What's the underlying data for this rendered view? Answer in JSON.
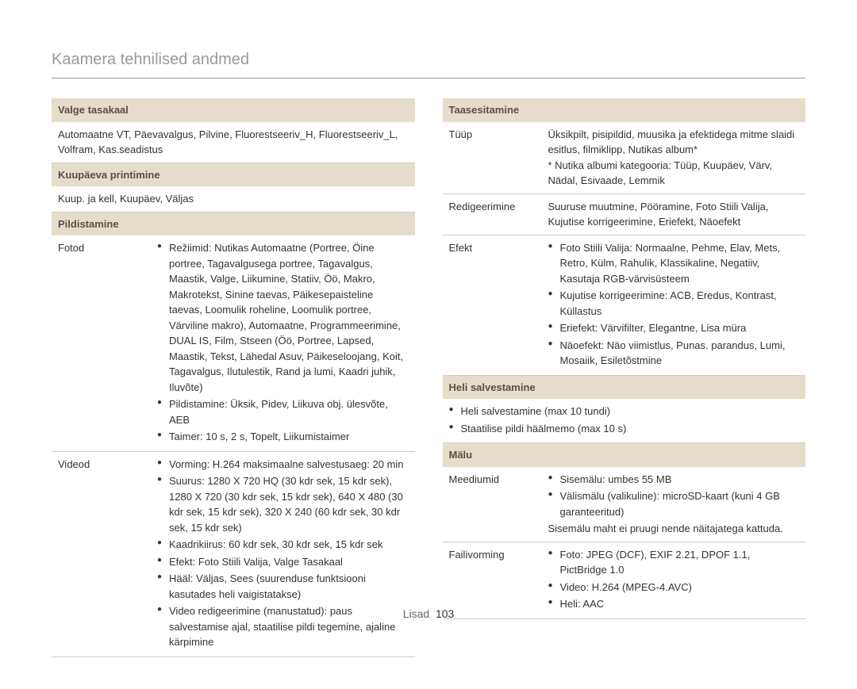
{
  "page": {
    "title": "Kaamera tehnilised andmed",
    "footer_label": "Lisad",
    "footer_page": "103"
  },
  "colors": {
    "header_bg": "#e6dccb",
    "header_text": "#5a5040",
    "border": "#cccccc",
    "title": "#999999",
    "body": "#333333"
  },
  "left": {
    "sec1": {
      "header": "Valge tasakaal",
      "body": "Automaatne VT, Päevavalgus, Pilvine, Fluorestseeriv_H, Fluorestseeriv_L, Volfram, Kas.seadistus"
    },
    "sec2": {
      "header": "Kuupäeva printimine",
      "body": "Kuup. ja kell, Kuupäev, Väljas"
    },
    "sec3": {
      "header": "Pildistamine",
      "row1_label": "Fotod",
      "row1_bullets": [
        "Režiimid: Nutikas Automaatne (Portree, Öine portree, Tagavalgusega portree, Tagavalgus, Maastik, Valge, Liikumine, Statiiv, Öö, Makro, Makrotekst, Sinine taevas, Päikesepaisteline taevas, Loomulik roheline, Loomulik portree, Värviline makro), Automaatne, Programmeerimine, DUAL IS, Film, Stseen (Öö, Portree, Lapsed, Maastik, Tekst, Lähedal Asuv, Päikeseloojang, Koit, Tagavalgus, Ilutulestik, Rand ja lumi, Kaadri juhik, Iluvõte)",
        "Pildistamine: Üksik, Pidev, Liikuva obj. ülesvõte, AEB",
        "Taimer: 10  s, 2  s, Topelt, Liikumistaimer"
      ],
      "row2_label": "Videod",
      "row2_bullets": [
        "Vorming: H.264 maksimaalne salvestusaeg: 20 min",
        "Suurus: 1280 X 720 HQ (30 kdr sek, 15 kdr sek), 1280 X 720 (30 kdr sek, 15 kdr sek), 640 X 480 (30 kdr sek, 15 kdr sek), 320 X 240 (60 kdr sek, 30 kdr sek, 15 kdr sek)",
        "Kaadrikiirus: 60 kdr sek, 30 kdr sek, 15 kdr sek",
        "Efekt: Foto Stiili Valija, Valge Tasakaal",
        "Hääl: Väljas, Sees (suurenduse funktsiooni kasutades heli vaigistatakse)",
        "Video redigeerimine (manustatud): paus salvestamise ajal, staatilise pildi tegemine, ajaline kärpimine"
      ]
    }
  },
  "right": {
    "sec1": {
      "header": "Taasesitamine",
      "row1_label": "Tüüp",
      "row1_body": "Üksikpilt, pisipildid, muusika ja efektidega mitme slaidi esitlus, filmiklipp, Nutikas album*\n* Nutika albumi kategooria: Tüüp, Kuupäev, Värv, Nädal, Esivaade, Lemmik",
      "row2_label": "Redigeerimine",
      "row2_body": "Suuruse muutmine, Pööramine, Foto Stiili Valija, Kujutise korrigeerimine, Eriefekt, Näoefekt",
      "row3_label": "Efekt",
      "row3_bullets": [
        "Foto Stiili Valija: Normaalne, Pehme, Elav, Mets, Retro, Külm, Rahulik, Klassikaline, Negatiiv, Kasutaja RGB-värvisüsteem",
        "Kujutise korrigeerimine: ACB, Eredus, Kontrast, Küllastus",
        "Eriefekt: Värvifilter, Elegantne, Lisa müra",
        "Näoefekt: Näo viimistlus, Punas. parandus, Lumi, Mosaiik, Esiletõstmine"
      ]
    },
    "sec2": {
      "header": "Heli salvestamine",
      "bullets": [
        "Heli salvestamine (max 10 tundi)",
        "Staatilise pildi häälmemo (max 10 s)"
      ]
    },
    "sec3": {
      "header": "Mälu",
      "row1_label": "Meediumid",
      "row1_bullets": [
        "Sisemälu: umbes 55 MB",
        "Välismälu (valikuline): microSD-kaart (kuni 4 GB garanteeritud)"
      ],
      "row1_note": "Sisemälu maht ei pruugi nende näitajatega kattuda.",
      "row2_label": "Failivorming",
      "row2_bullets": [
        "Foto: JPEG (DCF), EXIF 2.21, DPOF 1.1, PictBridge 1.0",
        "Video: H.264 (MPEG-4.AVC)",
        "Heli: AAC"
      ]
    }
  }
}
